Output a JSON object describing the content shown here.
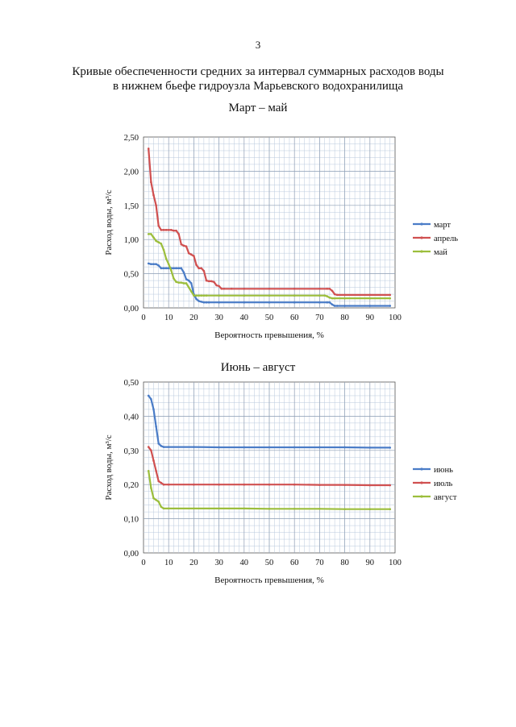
{
  "page_number": "3",
  "document_title": {
    "line1": "Кривые обеспеченности средних за интервал суммарных расходов воды",
    "line2": "в нижнем бьефе гидроузла Марьевского водохранилища"
  },
  "chart_data": [
    {
      "type": "line",
      "title": "Март – май",
      "xlabel": "Вероятность превышения, %",
      "ylabel": "Расход  воды, м³/с",
      "xlim": [
        0,
        100
      ],
      "ylim": [
        0,
        2.5
      ],
      "grid": true,
      "legend": "right",
      "x_ticks": [
        "0",
        "10",
        "20",
        "30",
        "40",
        "50",
        "60",
        "70",
        "80",
        "90",
        "100"
      ],
      "y_ticks": [
        "0,00",
        "0,50",
        "1,00",
        "1,50",
        "2,00",
        "2,50"
      ],
      "series": [
        {
          "name": "март",
          "color": "#4a7cc7",
          "x": [
            2,
            3,
            4,
            5,
            6,
            7,
            8,
            9,
            10,
            11,
            12,
            13,
            14,
            15,
            16,
            17,
            18,
            19,
            20,
            21,
            22,
            23,
            24,
            25,
            26,
            30,
            40,
            50,
            60,
            70,
            73,
            74,
            75,
            76,
            77,
            80,
            90,
            98
          ],
          "y": [
            0.65,
            0.64,
            0.64,
            0.64,
            0.62,
            0.58,
            0.58,
            0.58,
            0.58,
            0.58,
            0.58,
            0.58,
            0.58,
            0.58,
            0.52,
            0.42,
            0.4,
            0.36,
            0.2,
            0.13,
            0.1,
            0.09,
            0.08,
            0.08,
            0.08,
            0.08,
            0.08,
            0.08,
            0.08,
            0.08,
            0.08,
            0.08,
            0.05,
            0.03,
            0.03,
            0.03,
            0.03,
            0.03
          ]
        },
        {
          "name": "апрель",
          "color": "#d05050",
          "x": [
            2,
            3,
            4,
            5,
            6,
            7,
            8,
            9,
            10,
            11,
            12,
            13,
            14,
            15,
            16,
            17,
            18,
            19,
            20,
            21,
            22,
            23,
            24,
            25,
            26,
            27,
            28,
            29,
            30,
            31,
            32,
            35,
            40,
            50,
            60,
            70,
            73,
            74,
            75,
            76,
            77,
            80,
            90,
            98
          ],
          "y": [
            2.33,
            1.84,
            1.65,
            1.5,
            1.2,
            1.14,
            1.14,
            1.14,
            1.14,
            1.14,
            1.13,
            1.13,
            1.08,
            0.93,
            0.91,
            0.9,
            0.8,
            0.78,
            0.76,
            0.63,
            0.58,
            0.58,
            0.54,
            0.4,
            0.39,
            0.39,
            0.38,
            0.33,
            0.32,
            0.28,
            0.28,
            0.28,
            0.28,
            0.28,
            0.28,
            0.28,
            0.28,
            0.28,
            0.25,
            0.2,
            0.19,
            0.19,
            0.19,
            0.19
          ]
        },
        {
          "name": "май",
          "color": "#9cbe3c",
          "x": [
            2,
            3,
            4,
            5,
            6,
            7,
            8,
            9,
            10,
            11,
            12,
            13,
            14,
            15,
            16,
            17,
            18,
            19,
            20,
            21,
            22,
            23,
            24,
            25,
            30,
            40,
            50,
            60,
            70,
            72,
            73,
            74,
            75,
            76,
            80,
            90,
            98
          ],
          "y": [
            1.08,
            1.08,
            1.03,
            0.98,
            0.96,
            0.94,
            0.85,
            0.72,
            0.64,
            0.55,
            0.43,
            0.38,
            0.37,
            0.37,
            0.36,
            0.36,
            0.3,
            0.24,
            0.18,
            0.18,
            0.18,
            0.18,
            0.18,
            0.18,
            0.18,
            0.18,
            0.18,
            0.18,
            0.18,
            0.18,
            0.17,
            0.15,
            0.14,
            0.14,
            0.14,
            0.14,
            0.14
          ]
        }
      ]
    },
    {
      "type": "line",
      "title": "Июнь – август",
      "xlabel": "Вероятность превышения, %",
      "ylabel": "Расход воды, м³/с",
      "xlim": [
        0,
        100
      ],
      "ylim": [
        0,
        0.5
      ],
      "grid": true,
      "legend": "right",
      "x_ticks": [
        "0",
        "10",
        "20",
        "30",
        "40",
        "50",
        "60",
        "70",
        "80",
        "90",
        "100"
      ],
      "y_ticks": [
        "0,00",
        "0,10",
        "0,20",
        "0,30",
        "0,40",
        "0,50"
      ],
      "series": [
        {
          "name": "июнь",
          "color": "#4a7cc7",
          "x": [
            2,
            3,
            4,
            5,
            6,
            7,
            8,
            10,
            20,
            30,
            40,
            50,
            60,
            70,
            80,
            90,
            98
          ],
          "y": [
            0.46,
            0.45,
            0.42,
            0.37,
            0.32,
            0.313,
            0.31,
            0.31,
            0.31,
            0.309,
            0.309,
            0.309,
            0.309,
            0.309,
            0.309,
            0.308,
            0.308
          ]
        },
        {
          "name": "июль",
          "color": "#d05050",
          "x": [
            2,
            3,
            4,
            5,
            6,
            7,
            8,
            10,
            20,
            30,
            40,
            50,
            60,
            70,
            80,
            90,
            98
          ],
          "y": [
            0.31,
            0.3,
            0.27,
            0.24,
            0.21,
            0.205,
            0.2,
            0.2,
            0.2,
            0.2,
            0.2,
            0.2,
            0.2,
            0.199,
            0.199,
            0.198,
            0.198
          ]
        },
        {
          "name": "август",
          "color": "#9cbe3c",
          "x": [
            2,
            3,
            4,
            5,
            6,
            7,
            8,
            10,
            20,
            30,
            40,
            50,
            60,
            70,
            80,
            90,
            98
          ],
          "y": [
            0.24,
            0.19,
            0.16,
            0.155,
            0.15,
            0.135,
            0.13,
            0.13,
            0.13,
            0.13,
            0.13,
            0.129,
            0.129,
            0.129,
            0.128,
            0.128,
            0.128
          ]
        }
      ]
    }
  ]
}
